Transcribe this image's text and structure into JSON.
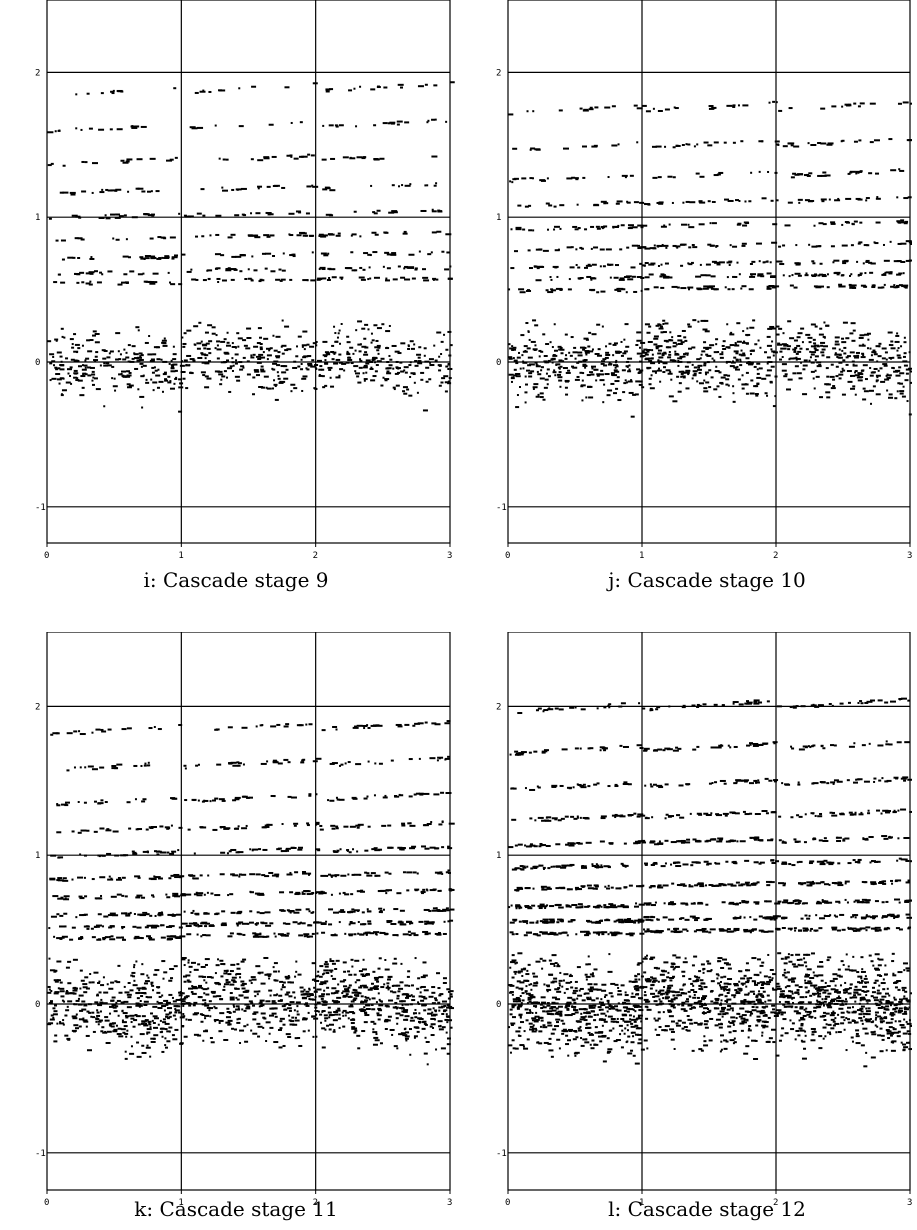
{
  "figure": {
    "point_color": "#000000",
    "panels": [
      {
        "caption": "i: Cascade stage 9",
        "chart_data": {
          "type": "scatter",
          "xlim": [
            0,
            3
          ],
          "ylim": [
            -1.25,
            2.5
          ],
          "x_ticks": [
            "0",
            "1",
            "2",
            "3"
          ],
          "y_ticks": [
            "-1",
            "0",
            "1",
            "2"
          ],
          "grid": true,
          "stage": 9,
          "point_density": 1.0,
          "upper_levels": [
            0.55,
            0.62,
            0.72,
            0.85,
            1.0,
            1.17,
            1.37,
            1.6,
            1.85
          ],
          "lower_band": [
            -0.4,
            0.3
          ]
        }
      },
      {
        "caption": "j: Cascade stage 10",
        "chart_data": {
          "type": "scatter",
          "xlim": [
            0,
            3
          ],
          "ylim": [
            -1.25,
            2.5
          ],
          "x_ticks": [
            "0",
            "1",
            "2",
            "3"
          ],
          "y_ticks": [
            "-1",
            "0",
            "1",
            "2"
          ],
          "grid": true,
          "stage": 10,
          "point_density": 1.3,
          "upper_levels": [
            0.5,
            0.58,
            0.66,
            0.78,
            0.92,
            1.08,
            1.26,
            1.47,
            1.72
          ],
          "lower_band": [
            -0.45,
            0.3
          ]
        }
      },
      {
        "caption": "k: Cascade stage 11",
        "chart_data": {
          "type": "scatter",
          "xlim": [
            0,
            3
          ],
          "ylim": [
            -1.25,
            2.5
          ],
          "x_ticks": [
            "0",
            "1",
            "2",
            "3"
          ],
          "y_ticks": [
            "-1",
            "0",
            "1",
            "2"
          ],
          "grid": true,
          "stage": 11,
          "point_density": 1.7,
          "upper_levels": [
            0.45,
            0.52,
            0.6,
            0.72,
            0.84,
            1.0,
            1.16,
            1.35,
            1.58,
            1.82
          ],
          "lower_band": [
            -0.5,
            0.32
          ]
        }
      },
      {
        "caption": "l: Cascade stage 12",
        "chart_data": {
          "type": "scatter",
          "xlim": [
            0,
            3
          ],
          "ylim": [
            -1.25,
            2.5
          ],
          "x_ticks": [
            "0",
            "1",
            "2",
            "3"
          ],
          "y_ticks": [
            "-1",
            "0",
            "1",
            "2"
          ],
          "grid": true,
          "stage": 12,
          "point_density": 2.3,
          "upper_levels": [
            0.48,
            0.56,
            0.66,
            0.78,
            0.92,
            1.07,
            1.24,
            1.45,
            1.69,
            1.97
          ],
          "lower_band": [
            -0.55,
            0.35
          ]
        }
      }
    ]
  }
}
